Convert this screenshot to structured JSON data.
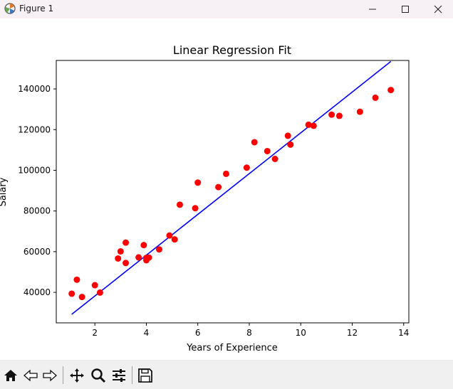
{
  "window": {
    "title": "Figure 1",
    "icons": [
      "matplotlib-figure-icon",
      "minimize-icon",
      "maximize-icon",
      "close-icon"
    ]
  },
  "toolbar": {
    "buttons": [
      "home-icon",
      "back-icon",
      "forward-icon",
      "pan-icon",
      "zoom-icon",
      "configure-subplots-icon",
      "save-icon"
    ]
  },
  "colors": {
    "points": "#ff0000",
    "line": "#0000ff",
    "titlebar": "#f7f1f5",
    "toolbar": "#f0f0f0"
  },
  "chart_data": {
    "type": "scatter",
    "title": "Linear Regression Fit",
    "xlabel": "Years of Experience",
    "ylabel": "Salary",
    "xlim": [
      0.5,
      14.2
    ],
    "ylim": [
      25000,
      154000
    ],
    "xticks": [
      2,
      4,
      6,
      8,
      10,
      12,
      14
    ],
    "yticks": [
      40000,
      60000,
      80000,
      100000,
      120000,
      140000
    ],
    "grid": false,
    "legend": "none",
    "series": [
      {
        "type": "scatter",
        "color": "#ff0000",
        "x": [
          1.1,
          1.3,
          1.5,
          2.0,
          2.2,
          2.9,
          3.0,
          3.2,
          3.2,
          3.7,
          3.9,
          4.0,
          4.0,
          4.1,
          4.5,
          4.9,
          5.1,
          5.3,
          5.9,
          6.0,
          6.8,
          7.1,
          7.9,
          8.2,
          8.7,
          9.0,
          9.5,
          9.6,
          10.3,
          10.5,
          11.2,
          11.5,
          12.3,
          12.9,
          13.5
        ],
        "y": [
          39343,
          46205,
          37731,
          43525,
          39891,
          56642,
          60150,
          54445,
          64445,
          57189,
          63218,
          55794,
          56957,
          57081,
          61111,
          67938,
          66029,
          83088,
          81363,
          93940,
          91738,
          98273,
          101302,
          113812,
          109431,
          105582,
          116969,
          112635,
          122391,
          121872,
          127345,
          126756,
          128765,
          135675,
          139465
        ]
      },
      {
        "type": "line",
        "color": "#0000ff",
        "x": [
          1.1,
          13.5
        ],
        "y": [
          29200,
          153500
        ]
      }
    ]
  }
}
